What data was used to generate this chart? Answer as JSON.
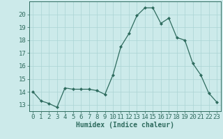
{
  "x": [
    0,
    1,
    2,
    3,
    4,
    5,
    6,
    7,
    8,
    9,
    10,
    11,
    12,
    13,
    14,
    15,
    16,
    17,
    18,
    19,
    20,
    21,
    22,
    23
  ],
  "y": [
    14.0,
    13.3,
    13.1,
    12.8,
    14.3,
    14.2,
    14.2,
    14.2,
    14.1,
    13.8,
    15.3,
    17.5,
    18.5,
    19.9,
    20.5,
    20.5,
    19.3,
    19.7,
    18.2,
    18.0,
    16.2,
    15.3,
    13.9,
    13.2
  ],
  "line_color": "#2e6b5e",
  "marker": "D",
  "marker_size": 2.0,
  "bg_color": "#cceaea",
  "grid_color": "#aad4d4",
  "xlabel": "Humidex (Indice chaleur)",
  "xlabel_fontsize": 7.0,
  "tick_fontsize": 6.5,
  "ylim": [
    12.5,
    21.0
  ],
  "xlim": [
    -0.5,
    23.5
  ],
  "yticks": [
    13,
    14,
    15,
    16,
    17,
    18,
    19,
    20
  ],
  "xticks": [
    0,
    1,
    2,
    3,
    4,
    5,
    6,
    7,
    8,
    9,
    10,
    11,
    12,
    13,
    14,
    15,
    16,
    17,
    18,
    19,
    20,
    21,
    22,
    23
  ],
  "linewidth": 0.9
}
